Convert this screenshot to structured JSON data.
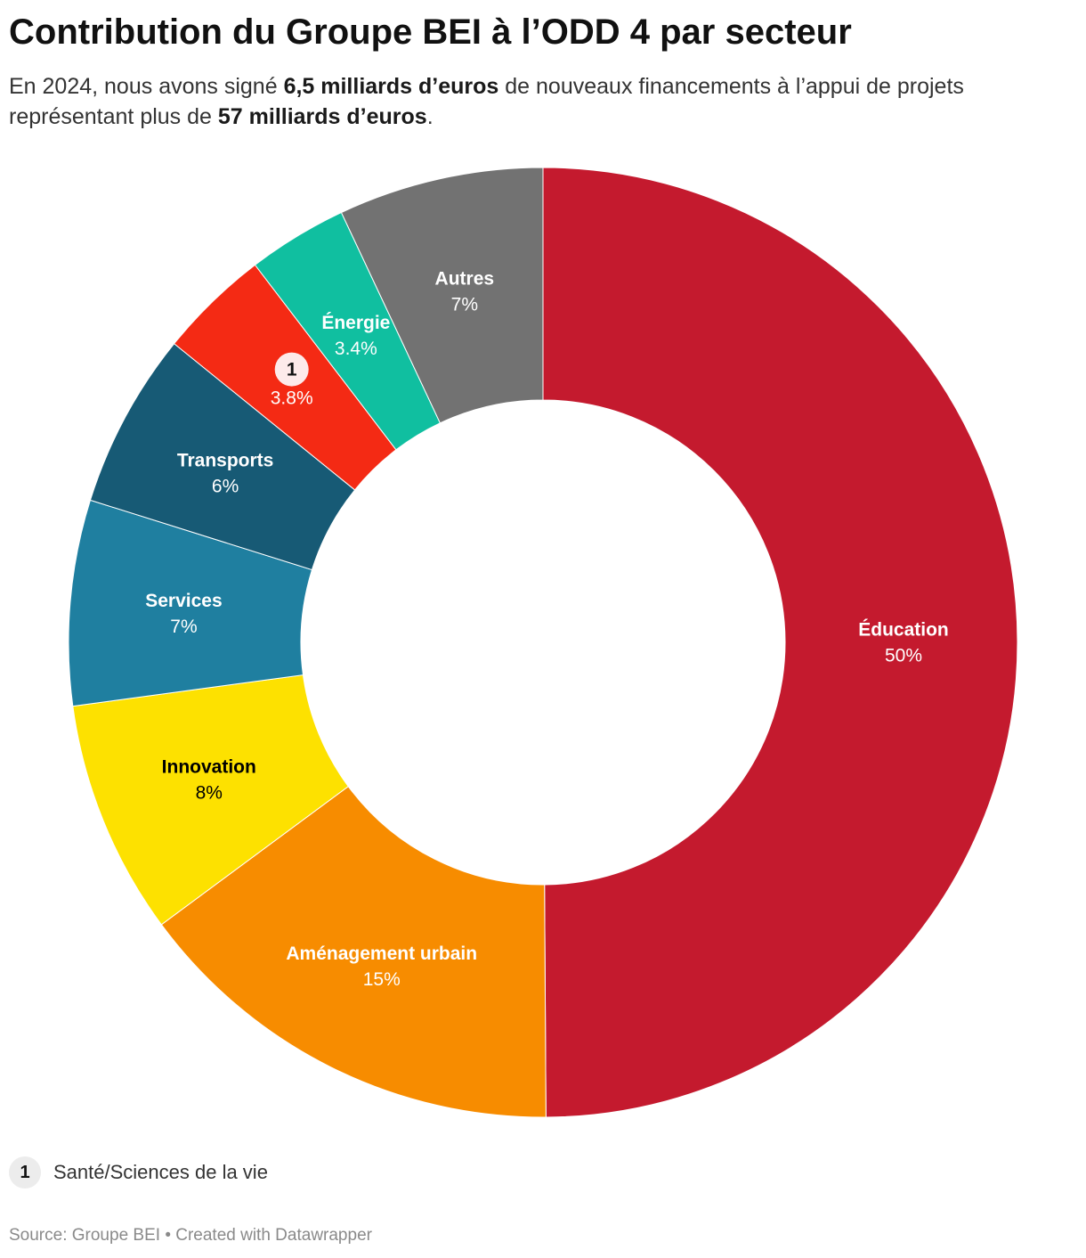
{
  "title": "Contribution du Groupe BEI à l’ODD 4 par secteur",
  "subtitle": {
    "part1": "En 2024, nous avons signé ",
    "bold1": "6,5 milliards d’euros",
    "part2": " de nouveaux financements à l’appui de projets représentant plus de ",
    "bold2": "57 milliards d’euros",
    "part3": "."
  },
  "chart_data": {
    "type": "donut",
    "slices": [
      {
        "name": "Éducation",
        "value": 50,
        "label": "50%",
        "color": "#c41a2e",
        "text_color": "#ffffff"
      },
      {
        "name": "Aménagement urbain",
        "value": 15,
        "label": "15%",
        "color": "#f78c00",
        "text_color": "#ffffff"
      },
      {
        "name": "Innovation",
        "value": 8,
        "label": "8%",
        "color": "#fde100",
        "text_color": "#000000"
      },
      {
        "name": "Services",
        "value": 7,
        "label": "7%",
        "color": "#1f7fa0",
        "text_color": "#ffffff"
      },
      {
        "name": "Transports",
        "value": 6,
        "label": "6%",
        "color": "#175a75",
        "text_color": "#ffffff"
      },
      {
        "name": "",
        "marker": "1",
        "value": 3.8,
        "label": "3.8%",
        "color": "#f42a14",
        "text_color": "#ffffff"
      },
      {
        "name": "Énergie",
        "value": 3.4,
        "label": "3.4%",
        "color": "#10bfa0",
        "text_color": "#ffffff"
      },
      {
        "name": "Autres",
        "value": 7,
        "label": "7%",
        "color": "#727272",
        "text_color": "#ffffff"
      }
    ]
  },
  "legend": {
    "marker": "1",
    "text": "Santé/Sciences de la vie"
  },
  "footer": "Source: Groupe BEI • Created with Datawrapper"
}
